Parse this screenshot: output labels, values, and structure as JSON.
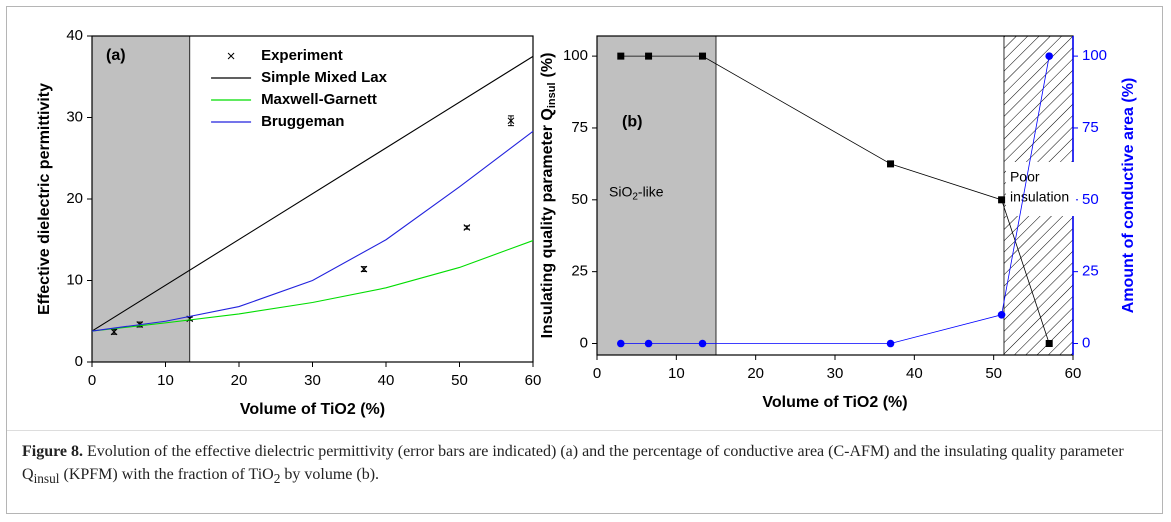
{
  "chart_data": [
    {
      "type": "line",
      "annotation": "(a)",
      "xlabel": "Volume of TiO2 (%)",
      "ylabel": "Effective dielectric permittivity",
      "xlim": [
        0,
        60
      ],
      "xticks": [
        0,
        10,
        20,
        30,
        40,
        50,
        60
      ],
      "ylim": [
        0,
        40
      ],
      "yticks": [
        0,
        10,
        20,
        30,
        40
      ],
      "shaded_region": [
        0,
        13.3
      ],
      "shade_color": "#c0c0c0",
      "legend": "upper center",
      "series": [
        {
          "name": "Experiment",
          "style": "markers",
          "marker": "x",
          "color": "#000000",
          "x": [
            3,
            6.5,
            13.3,
            37,
            51,
            57
          ],
          "values": [
            3.7,
            4.6,
            5.3,
            11.4,
            16.5,
            29.6
          ],
          "errors": [
            0.3,
            0.3,
            0.2,
            0.3,
            0.2,
            0.6
          ]
        },
        {
          "name": "Simple Mixed Lax",
          "style": "line",
          "color": "#000000",
          "x": [
            0,
            60
          ],
          "values": [
            3.8,
            37.5
          ]
        },
        {
          "name": "Maxwell-Garnett",
          "style": "line",
          "color": "#00dd00",
          "x": [
            0,
            10,
            20,
            30,
            40,
            50,
            60
          ],
          "values": [
            3.8,
            4.8,
            5.9,
            7.3,
            9.1,
            11.6,
            14.9
          ]
        },
        {
          "name": "Bruggeman",
          "style": "line",
          "color": "#2222dd",
          "x": [
            0,
            10,
            20,
            30,
            40,
            50,
            60
          ],
          "values": [
            3.8,
            5.0,
            6.8,
            10.0,
            15.0,
            21.5,
            28.3
          ]
        }
      ]
    },
    {
      "type": "line",
      "annotation": "(b)",
      "xlabel": "Volume of TiO2 (%)",
      "ylabel": "Insulating quality parameter Q",
      "ylabel_sub": "insul",
      "ylabel_suffix": "(%)",
      "y2label": "Amount of conductive area (%)",
      "y2color": "#0000ff",
      "annotation_shade": "SiO",
      "annotation_shade_sub": "2",
      "annotation_shade_suffix": "-like",
      "annotation_hatch": [
        "Poor",
        "insulation"
      ],
      "xlim": [
        0,
        60
      ],
      "xticks": [
        0,
        10,
        20,
        30,
        40,
        50,
        60
      ],
      "ylim": [
        -4,
        107
      ],
      "yticks": [
        0,
        25,
        50,
        75,
        100
      ],
      "y2lim": [
        -4,
        107
      ],
      "y2ticks": [
        0,
        25,
        50,
        75,
        100
      ],
      "shaded_region": [
        0,
        15
      ],
      "shade_color": "#c0c0c0",
      "hatched_region": [
        51.3,
        60
      ],
      "series": [
        {
          "style": "line-markers",
          "marker": "square",
          "color": "#000000",
          "x": [
            3,
            6.5,
            13.3,
            37,
            51,
            57
          ],
          "values": [
            100,
            100,
            100,
            62.5,
            50,
            0
          ]
        },
        {
          "style": "line-markers",
          "marker": "circle",
          "color": "#0000ff",
          "axis": "y2",
          "x": [
            3,
            6.5,
            13.3,
            37,
            51,
            57
          ],
          "values": [
            0,
            0,
            0,
            0,
            10,
            100
          ]
        }
      ]
    }
  ],
  "caption": {
    "label": "Figure 8.",
    "text_1": "Evolution of the effective dielectric permittivity (error bars are indicated) (a) and the percentage of conductive area (C-AFM) and the insulating quality parameter Q",
    "sub_1": "insul",
    "text_2": " (KPFM) with the fraction of TiO",
    "sub_2": "2",
    "text_3": " by volume (b)."
  }
}
